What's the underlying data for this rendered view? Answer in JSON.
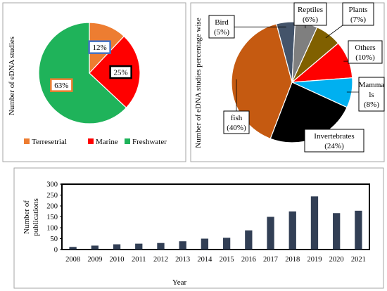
{
  "chart_data": [
    {
      "type": "pie",
      "ylabel": "Number of eDNA studies",
      "slices": [
        {
          "label": "Terresetrial",
          "value": 12,
          "display": "12%",
          "color": "#ed7d31",
          "label_border": "#4472c4"
        },
        {
          "label": "Marine",
          "value": 25,
          "display": "25%",
          "color": "#ff0000",
          "label_border": "#000000"
        },
        {
          "label": "Freshwater",
          "value": 63,
          "display": "63%",
          "color": "#1fb35a",
          "label_border": "#ed7d31"
        }
      ],
      "legend_position": "bottom"
    },
    {
      "type": "pie",
      "ylabel": "Number of eDNA studies percentage wise",
      "slices": [
        {
          "name": "Bird",
          "pct": "(5%)",
          "value": 5,
          "color": "#44546a"
        },
        {
          "name": "Reptiles",
          "pct": "(6%)",
          "value": 6,
          "color": "#7f7f7f"
        },
        {
          "name": "Plants",
          "pct": "(7%)",
          "value": 7,
          "color": "#806000"
        },
        {
          "name": "Others",
          "pct": "(10%)",
          "value": 10,
          "color": "#ff0000"
        },
        {
          "name_lines": [
            "Mamma",
            "ls"
          ],
          "pct": "(8%)",
          "value": 8,
          "color": "#00b0f0"
        },
        {
          "name": "Invertebrates",
          "pct": "(24%)",
          "value": 24,
          "color": "#000000"
        },
        {
          "name": "fish",
          "pct": "(40%)",
          "value": 40,
          "color": "#c55a11"
        }
      ]
    },
    {
      "type": "bar",
      "categories": [
        "2008",
        "2009",
        "2010",
        "2011",
        "2012",
        "2013",
        "2014",
        "2015",
        "2016",
        "2017",
        "2018",
        "2019",
        "2020",
        "2021"
      ],
      "values": [
        12,
        18,
        24,
        27,
        30,
        38,
        50,
        54,
        88,
        150,
        175,
        244,
        167,
        178
      ],
      "ylabel_lines": [
        "Number of",
        "publications"
      ],
      "xlabel": "Year",
      "ylim": [
        0,
        300
      ],
      "yticks": [
        "0",
        "50",
        "100",
        "150",
        "200",
        "250",
        "300"
      ],
      "bar_color": "#323f55",
      "grid": false
    }
  ]
}
